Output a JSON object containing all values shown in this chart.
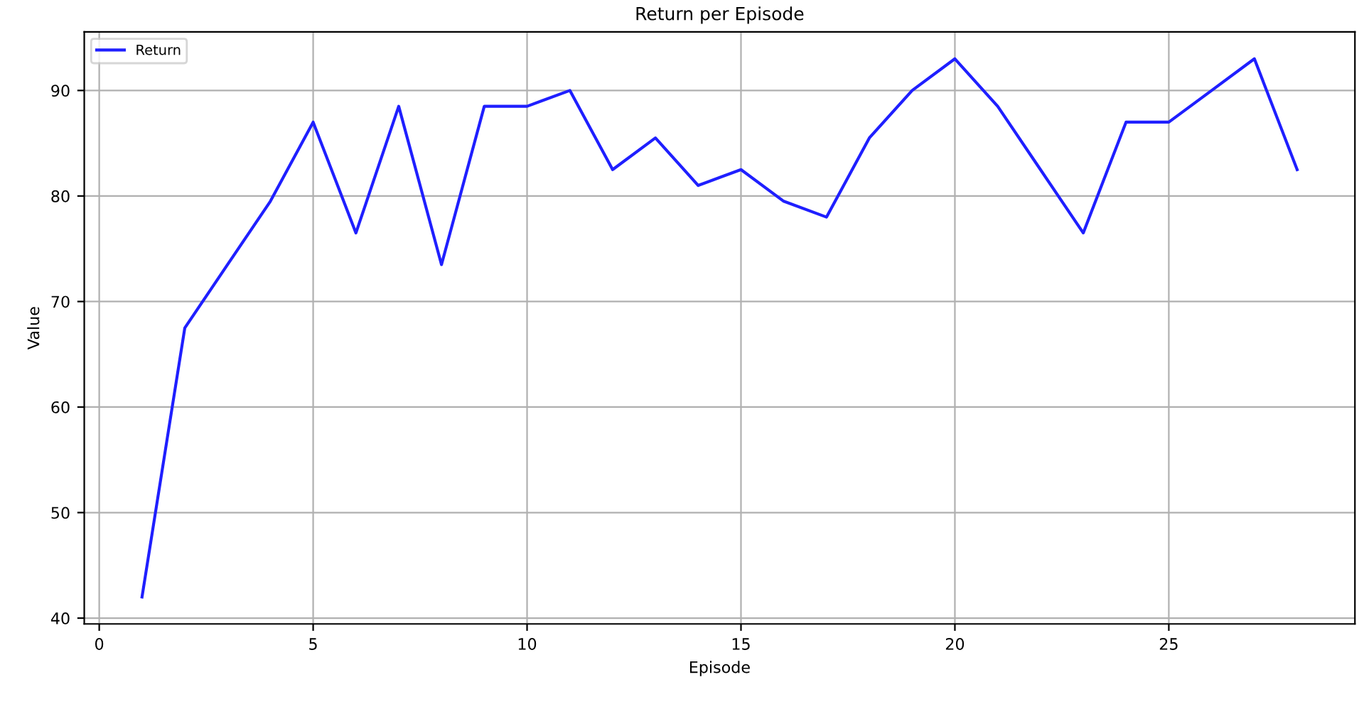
{
  "chart_data": {
    "type": "line",
    "title": "Return per Episode",
    "xlabel": "Episode",
    "ylabel": "Value",
    "x": [
      1,
      2,
      3,
      4,
      5,
      6,
      7,
      8,
      9,
      10,
      11,
      12,
      13,
      14,
      15,
      16,
      17,
      18,
      19,
      20,
      21,
      22,
      23,
      24,
      25,
      26,
      27,
      28
    ],
    "series": [
      {
        "name": "Return",
        "color": "#1f1fff",
        "values": [
          42,
          67.5,
          73.5,
          79.5,
          87,
          76.5,
          88.5,
          73.5,
          88.5,
          88.5,
          90,
          82.5,
          85.5,
          81,
          82.5,
          79.5,
          78,
          85.5,
          90,
          93,
          88.5,
          82.5,
          76.5,
          87,
          87,
          90,
          93,
          82.5
        ]
      }
    ],
    "xlim": [
      -0.35,
      29.35
    ],
    "xticks": [
      0,
      5,
      10,
      15,
      20,
      25
    ],
    "ylim": [
      39.45,
      95.55
    ],
    "yticks": [
      40,
      50,
      60,
      70,
      80,
      90
    ],
    "grid": true,
    "legend": "top left",
    "marker": "none",
    "line_style": "solid"
  }
}
